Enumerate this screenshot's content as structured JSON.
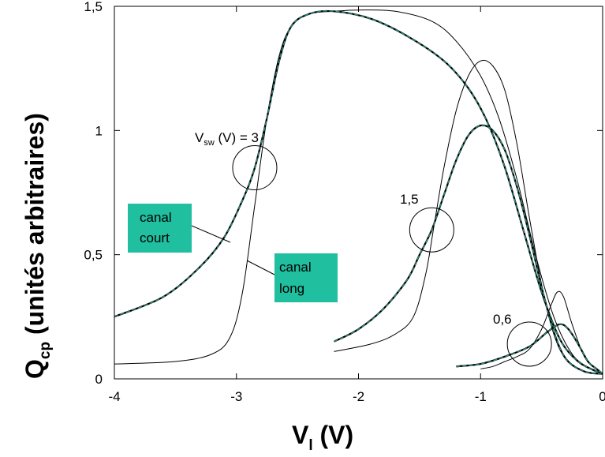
{
  "chart_data": {
    "type": "line",
    "xlabel": {
      "main": "V",
      "sub": "l",
      "unit": " (V)"
    },
    "ylabel": {
      "main": "Q",
      "sub": "cp",
      "unit": " (unités arbitraires)"
    },
    "xlim": [
      -4,
      0
    ],
    "ylim": [
      0,
      1.5
    ],
    "x_ticks": [
      -4,
      -3,
      -2,
      -1,
      0
    ],
    "x_tick_labels": [
      "-4",
      "-3",
      "-2",
      "-1",
      "0"
    ],
    "y_ticks": [
      0,
      0.5,
      1,
      1.5
    ],
    "y_tick_labels": [
      "0",
      "0,5",
      "1",
      "1,5"
    ],
    "grid": false,
    "colors": {
      "long": "#000000",
      "court_outer": "#000000",
      "court_inner": "#2a8f7f",
      "box": "#1fbf9f"
    },
    "series": [
      {
        "id": "long-3",
        "group": "long",
        "points": [
          [
            -4,
            0.06
          ],
          [
            -3.5,
            0.07
          ],
          [
            -3.2,
            0.1
          ],
          [
            -3.05,
            0.17
          ],
          [
            -2.95,
            0.35
          ],
          [
            -2.85,
            0.7
          ],
          [
            -2.75,
            1.05
          ],
          [
            -2.65,
            1.3
          ],
          [
            -2.55,
            1.42
          ],
          [
            -2.4,
            1.47
          ],
          [
            -2.2,
            1.48
          ],
          [
            -2.0,
            1.485
          ],
          [
            -1.7,
            1.48
          ],
          [
            -1.4,
            1.44
          ],
          [
            -1.2,
            1.36
          ],
          [
            -1.0,
            1.22
          ],
          [
            -0.85,
            1.05
          ],
          [
            -0.7,
            0.8
          ],
          [
            -0.55,
            0.5
          ],
          [
            -0.4,
            0.25
          ],
          [
            -0.25,
            0.1
          ],
          [
            -0.1,
            0.04
          ],
          [
            0,
            0.02
          ]
        ]
      },
      {
        "id": "court-3",
        "group": "court",
        "points": [
          [
            -4,
            0.25
          ],
          [
            -3.6,
            0.33
          ],
          [
            -3.3,
            0.45
          ],
          [
            -3.1,
            0.57
          ],
          [
            -2.95,
            0.72
          ],
          [
            -2.85,
            0.85
          ],
          [
            -2.75,
            1.05
          ],
          [
            -2.65,
            1.28
          ],
          [
            -2.55,
            1.42
          ],
          [
            -2.4,
            1.47
          ],
          [
            -2.2,
            1.48
          ],
          [
            -1.9,
            1.45
          ],
          [
            -1.6,
            1.38
          ],
          [
            -1.3,
            1.28
          ],
          [
            -1.1,
            1.17
          ],
          [
            -0.95,
            1.04
          ],
          [
            -0.8,
            0.85
          ],
          [
            -0.65,
            0.6
          ],
          [
            -0.5,
            0.35
          ],
          [
            -0.35,
            0.16
          ],
          [
            -0.2,
            0.07
          ],
          [
            -0.05,
            0.03
          ],
          [
            0,
            0.02
          ]
        ]
      },
      {
        "id": "long-1.5",
        "group": "long",
        "points": [
          [
            -2.2,
            0.11
          ],
          [
            -1.9,
            0.14
          ],
          [
            -1.7,
            0.18
          ],
          [
            -1.55,
            0.25
          ],
          [
            -1.45,
            0.42
          ],
          [
            -1.38,
            0.62
          ],
          [
            -1.3,
            0.85
          ],
          [
            -1.2,
            1.08
          ],
          [
            -1.1,
            1.22
          ],
          [
            -1.0,
            1.28
          ],
          [
            -0.9,
            1.26
          ],
          [
            -0.8,
            1.16
          ],
          [
            -0.7,
            0.94
          ],
          [
            -0.6,
            0.65
          ],
          [
            -0.5,
            0.38
          ],
          [
            -0.4,
            0.18
          ],
          [
            -0.3,
            0.08
          ],
          [
            -0.15,
            0.03
          ],
          [
            0,
            0.02
          ]
        ]
      },
      {
        "id": "court-1.5",
        "group": "court",
        "points": [
          [
            -2.2,
            0.15
          ],
          [
            -2.0,
            0.2
          ],
          [
            -1.8,
            0.28
          ],
          [
            -1.6,
            0.4
          ],
          [
            -1.5,
            0.5
          ],
          [
            -1.4,
            0.6
          ],
          [
            -1.3,
            0.74
          ],
          [
            -1.2,
            0.88
          ],
          [
            -1.1,
            0.98
          ],
          [
            -1.0,
            1.02
          ],
          [
            -0.9,
            1.0
          ],
          [
            -0.8,
            0.92
          ],
          [
            -0.7,
            0.77
          ],
          [
            -0.6,
            0.58
          ],
          [
            -0.5,
            0.37
          ],
          [
            -0.4,
            0.19
          ],
          [
            -0.3,
            0.08
          ],
          [
            -0.15,
            0.03
          ],
          [
            0,
            0.02
          ]
        ]
      },
      {
        "id": "long-0.6",
        "group": "long",
        "points": [
          [
            -1.0,
            0.04
          ],
          [
            -0.9,
            0.05
          ],
          [
            -0.8,
            0.07
          ],
          [
            -0.7,
            0.09
          ],
          [
            -0.6,
            0.12
          ],
          [
            -0.5,
            0.2
          ],
          [
            -0.42,
            0.3
          ],
          [
            -0.37,
            0.35
          ],
          [
            -0.32,
            0.33
          ],
          [
            -0.25,
            0.22
          ],
          [
            -0.15,
            0.09
          ],
          [
            -0.05,
            0.04
          ],
          [
            0,
            0.02
          ]
        ]
      },
      {
        "id": "court-0.6",
        "group": "court",
        "points": [
          [
            -1.2,
            0.05
          ],
          [
            -1.0,
            0.06
          ],
          [
            -0.8,
            0.09
          ],
          [
            -0.6,
            0.13
          ],
          [
            -0.45,
            0.19
          ],
          [
            -0.35,
            0.22
          ],
          [
            -0.28,
            0.2
          ],
          [
            -0.2,
            0.14
          ],
          [
            -0.12,
            0.07
          ],
          [
            -0.05,
            0.04
          ],
          [
            0,
            0.02
          ]
        ]
      }
    ],
    "circles": [
      {
        "id": "circle-3",
        "x": -2.85,
        "y": 0.85
      },
      {
        "id": "circle-1.5",
        "x": -1.4,
        "y": 0.6
      },
      {
        "id": "circle-0.6",
        "x": -0.6,
        "y": 0.14
      }
    ],
    "annotations": {
      "vsw_prefix": "V",
      "vsw_sub": "sw",
      "vsw_suffix": " (V) = 3",
      "label_1_5": "1,5",
      "label_0_6": "0,6"
    },
    "legend_boxes": {
      "court": [
        "canal",
        "court"
      ],
      "long": [
        "canal",
        "long"
      ]
    }
  }
}
